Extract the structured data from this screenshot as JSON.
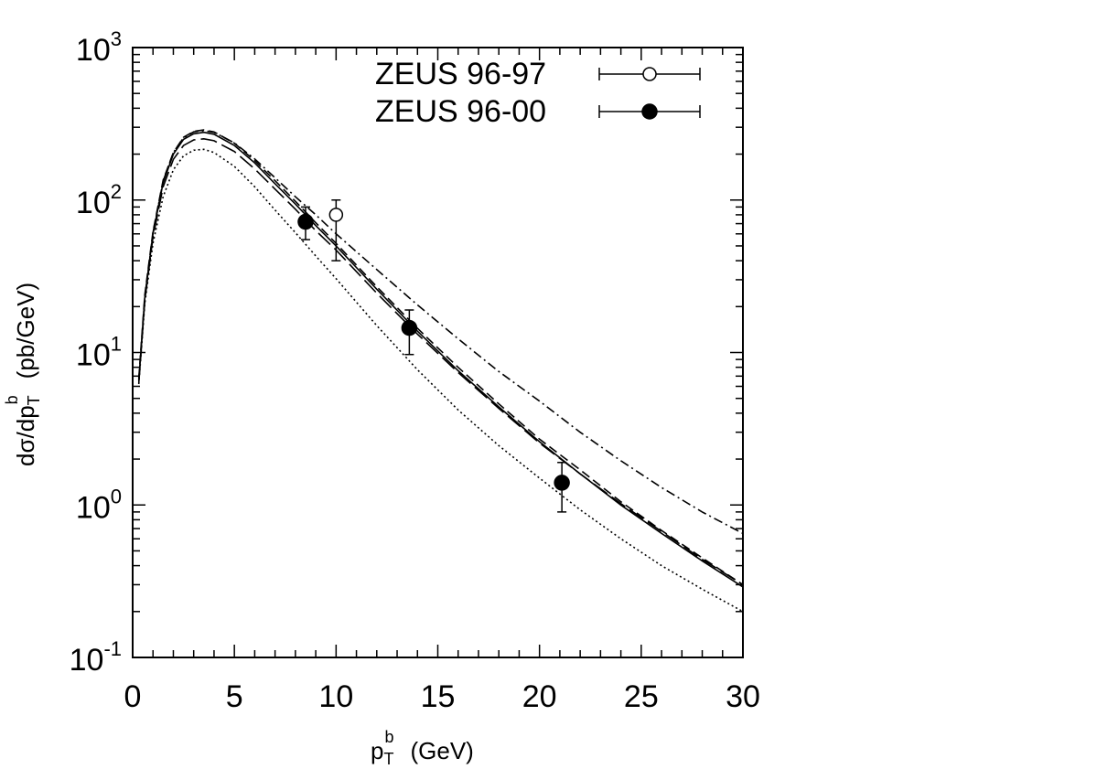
{
  "chart_data": {
    "type": "line",
    "xlabel": {
      "main": "p",
      "sub": "T",
      "sup": "b",
      "unit": "(GeV)"
    },
    "ylabel": {
      "main": "dσ/dp",
      "sub": "T",
      "sup": "b",
      "unit": "(pb/GeV)"
    },
    "xlim": [
      0,
      30
    ],
    "ylim": [
      0.1,
      1000
    ],
    "yscale": "log",
    "x_ticks": [
      "0",
      "5",
      "10",
      "15",
      "20",
      "25",
      "30"
    ],
    "y_ticks": [
      {
        "base": "10",
        "exp": "-1"
      },
      {
        "base": "10",
        "exp": "0"
      },
      {
        "base": "10",
        "exp": "1"
      },
      {
        "base": "10",
        "exp": "2"
      },
      {
        "base": "10",
        "exp": "3"
      }
    ],
    "grid": false,
    "legend_position": "top-right",
    "series": [
      {
        "name": "ZEUS 96-97",
        "kind": "points",
        "marker": "open-circle",
        "points": [
          {
            "x": 10.0,
            "y": 80.0,
            "ylo": 40.0,
            "yhi": 100.0
          }
        ]
      },
      {
        "name": "ZEUS 96-00",
        "kind": "points",
        "marker": "filled-circle",
        "points": [
          {
            "x": 8.5,
            "y": 72.0,
            "ylo": 55.0,
            "yhi": 90.0
          },
          {
            "x": 13.6,
            "y": 14.5,
            "ylo": 9.7,
            "yhi": 19.0
          },
          {
            "x": 21.1,
            "y": 1.4,
            "ylo": 0.9,
            "yhi": 1.9
          }
        ]
      },
      {
        "kind": "curve",
        "style": "solid",
        "x": [
          0.3,
          0.6,
          1,
          1.5,
          2,
          2.5,
          3,
          3.5,
          4,
          5,
          6,
          7,
          8,
          9,
          10,
          12,
          14,
          16,
          18,
          20,
          22,
          24,
          26,
          28,
          30
        ],
        "y": [
          6.5,
          23,
          60,
          130,
          200,
          250,
          272,
          278,
          270,
          228,
          175,
          128,
          94,
          68,
          50,
          26,
          13.8,
          7.6,
          4.4,
          2.6,
          1.6,
          1.0,
          0.65,
          0.43,
          0.29
        ]
      },
      {
        "kind": "curve",
        "style": "dashed",
        "x": [
          0.3,
          0.6,
          1,
          1.5,
          2,
          2.5,
          3,
          3.5,
          4,
          5,
          6,
          7,
          8,
          9,
          10,
          12,
          14,
          16,
          18,
          20,
          22,
          24,
          26,
          28,
          30
        ],
        "y": [
          6.8,
          24,
          62,
          135,
          205,
          258,
          282,
          288,
          280,
          236,
          181,
          134,
          98,
          71,
          52,
          27,
          14.4,
          8.0,
          4.6,
          2.7,
          1.7,
          1.05,
          0.68,
          0.45,
          0.3
        ]
      },
      {
        "kind": "curve",
        "style": "long-dash",
        "x": [
          0.3,
          0.6,
          1,
          1.5,
          2,
          2.5,
          3,
          3.5,
          4,
          5,
          6,
          7,
          8,
          9,
          10,
          12,
          14,
          16,
          18,
          20,
          22,
          24,
          26,
          28,
          30
        ],
        "y": [
          6.3,
          22,
          57,
          122,
          185,
          228,
          248,
          252,
          245,
          208,
          160,
          118,
          87,
          63,
          47,
          24.5,
          13.2,
          7.4,
          4.3,
          2.55,
          1.6,
          1.02,
          0.67,
          0.44,
          0.3
        ]
      },
      {
        "kind": "curve",
        "style": "dash-dot",
        "x": [
          0.3,
          0.6,
          1,
          1.5,
          2,
          2.5,
          3,
          3.5,
          4,
          5,
          6,
          7,
          8,
          9,
          10,
          12,
          14,
          16,
          18,
          20,
          22,
          24,
          26,
          28,
          30
        ],
        "y": [
          6.6,
          23,
          61,
          133,
          205,
          256,
          280,
          285,
          278,
          237,
          186,
          140,
          105,
          80,
          60,
          35,
          20.5,
          12.3,
          7.5,
          4.8,
          3.0,
          1.95,
          1.3,
          0.9,
          0.65
        ]
      },
      {
        "kind": "curve",
        "style": "dotted",
        "x": [
          0.3,
          0.6,
          1,
          1.5,
          2,
          2.5,
          3,
          3.5,
          4,
          5,
          6,
          7,
          8,
          9,
          10,
          12,
          14,
          16,
          18,
          20,
          22,
          24,
          26,
          28,
          30
        ],
        "y": [
          6.2,
          21,
          52,
          105,
          158,
          195,
          212,
          215,
          205,
          166,
          122,
          86,
          61,
          43,
          30.5,
          15,
          7.7,
          4.2,
          2.45,
          1.5,
          0.93,
          0.6,
          0.4,
          0.28,
          0.2
        ]
      }
    ]
  }
}
